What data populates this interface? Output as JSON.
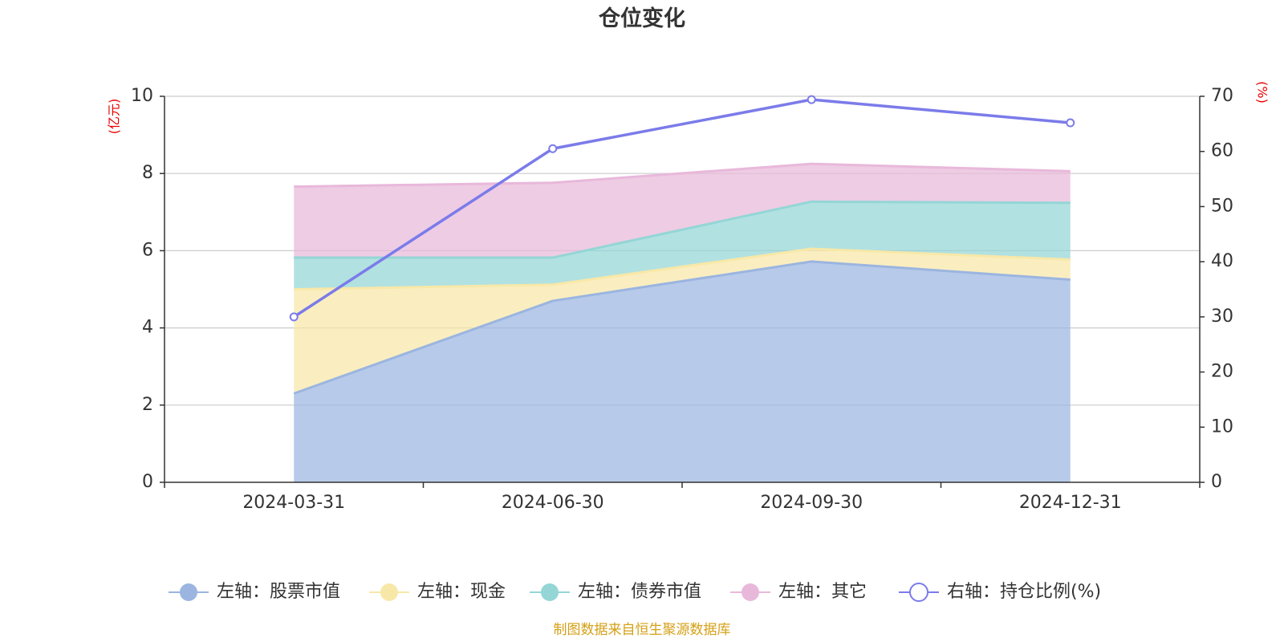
{
  "chart_data": {
    "type": "area",
    "title": "仓位变化",
    "categories": [
      "2024-03-31",
      "2024-06-30",
      "2024-09-30",
      "2024-12-31"
    ],
    "stacked": true,
    "left_axis": {
      "unit_label": "(亿元)",
      "ylim": [
        0,
        10
      ],
      "ticks": [
        "0",
        "2",
        "4",
        "6",
        "8",
        "10"
      ]
    },
    "right_axis": {
      "unit_label": "(%)",
      "ylim": [
        0,
        70
      ],
      "ticks": [
        "0",
        "10",
        "20",
        "30",
        "40",
        "50",
        "60",
        "70"
      ]
    },
    "series": [
      {
        "name": "左轴：股票市值",
        "axis": "left",
        "kind": "area",
        "color": "#9bb5e0",
        "values": [
          2.3,
          4.7,
          5.72,
          5.25
        ]
      },
      {
        "name": "左轴：现金",
        "axis": "left",
        "kind": "area",
        "color": "#f8e8a8",
        "values": [
          2.7,
          0.42,
          0.33,
          0.52
        ]
      },
      {
        "name": "左轴：债券市值",
        "axis": "left",
        "kind": "area",
        "color": "#94d6d6",
        "values": [
          0.82,
          0.7,
          1.22,
          1.47
        ]
      },
      {
        "name": "左轴：其它",
        "axis": "left",
        "kind": "area",
        "color": "#e8b8da",
        "values": [
          1.84,
          1.94,
          0.98,
          0.82
        ]
      },
      {
        "name": "右轴：持仓比例(%)",
        "axis": "right",
        "kind": "line",
        "color": "#7b7bea",
        "values": [
          30.0,
          60.5,
          69.4,
          65.2
        ]
      }
    ],
    "grid": true,
    "legend_position": "bottom"
  },
  "footer": {
    "source": "制图数据来自恒生聚源数据库"
  }
}
